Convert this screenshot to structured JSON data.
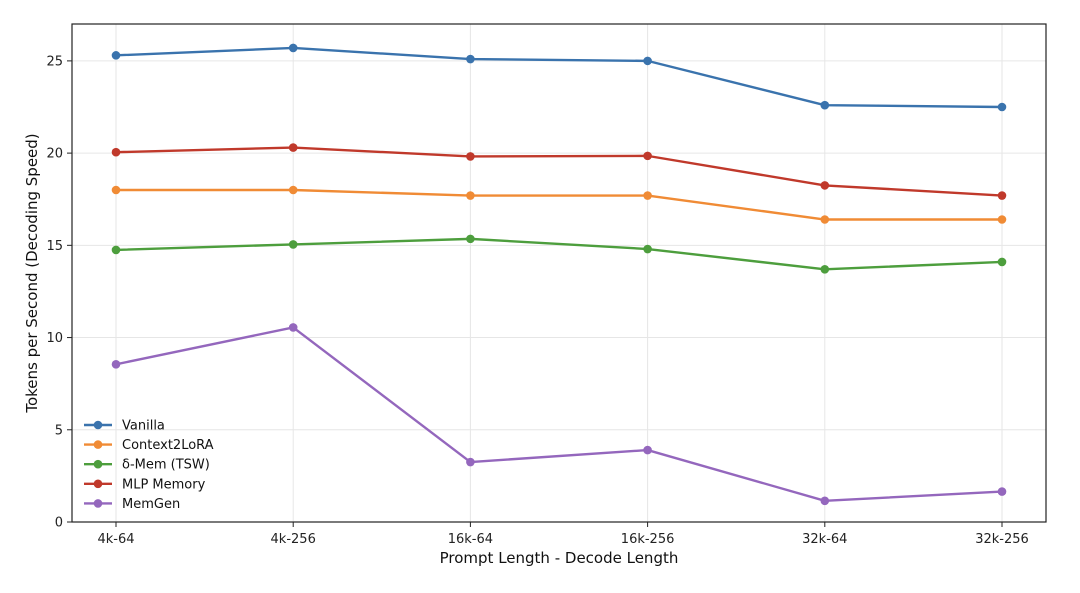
{
  "chart_data": {
    "type": "line",
    "title": "",
    "xlabel": "Prompt Length - Decode Length",
    "ylabel": "Tokens per Second (Decoding Speed)",
    "categories": [
      "4k-64",
      "4k-256",
      "16k-64",
      "16k-256",
      "32k-64",
      "32k-256"
    ],
    "ylim": [
      0,
      27
    ],
    "yticks": [
      0,
      5,
      10,
      15,
      20,
      25
    ],
    "grid": true,
    "legend_position": "bottom-left",
    "series": [
      {
        "name": "Vanilla",
        "color": "#3a73ad",
        "values": [
          25.3,
          25.7,
          25.1,
          25.0,
          22.6,
          22.5
        ]
      },
      {
        "name": "Context2LoRA",
        "color": "#f08b35",
        "values": [
          18.0,
          18.0,
          17.7,
          17.7,
          16.4,
          16.4
        ]
      },
      {
        "name": "δ-Mem (TSW)",
        "color": "#4d9e3d",
        "values": [
          14.75,
          15.05,
          15.35,
          14.8,
          13.7,
          14.1
        ]
      },
      {
        "name": "MLP Memory",
        "color": "#c0392b",
        "values": [
          20.05,
          20.3,
          19.82,
          19.85,
          18.25,
          17.7
        ]
      },
      {
        "name": "MemGen",
        "color": "#9467bd",
        "values": [
          8.55,
          10.55,
          3.25,
          3.9,
          1.15,
          1.65
        ]
      }
    ]
  }
}
